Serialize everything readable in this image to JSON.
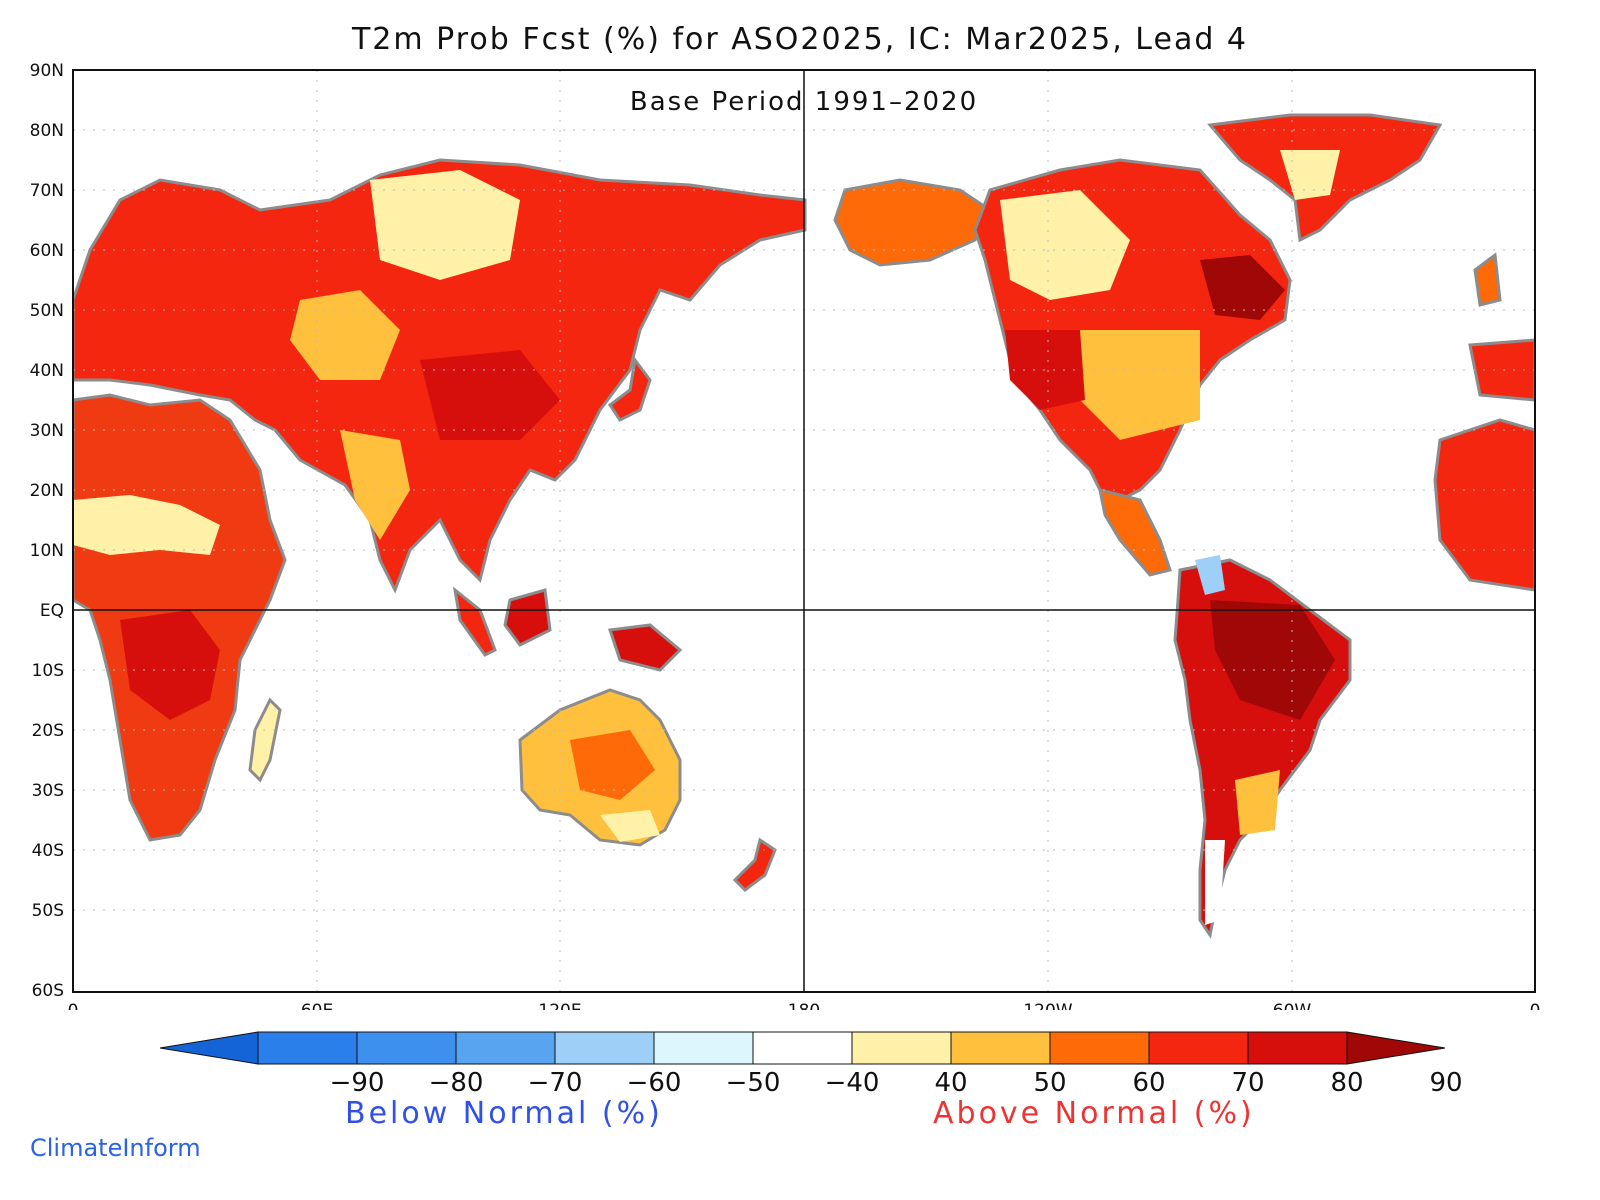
{
  "title": "T2m Prob Fcst (%) for ASO2025, IC: Mar2025, Lead 4",
  "subtitle": "Base Period 1991–2020",
  "lat_labels": [
    "90N",
    "80N",
    "70N",
    "60N",
    "50N",
    "40N",
    "30N",
    "20N",
    "10N",
    "EQ",
    "10S",
    "20S",
    "30S",
    "40S",
    "50S",
    "60S"
  ],
  "lon_labels": [
    "0",
    "60E",
    "120E",
    "180",
    "120W",
    "60W",
    "0"
  ],
  "legend": {
    "ticks": [
      "−90",
      "−80",
      "−70",
      "−60",
      "−50",
      "−40",
      "40",
      "50",
      "60",
      "70",
      "80",
      "90"
    ],
    "colors": [
      "#1464d8",
      "#2b7fea",
      "#3d90ee",
      "#58a4f0",
      "#9ecff6",
      "#dcf6fd",
      "#ffffff",
      "#fff2a8",
      "#fec03d",
      "#fd6a07",
      "#f4260f",
      "#d60f0d",
      "#a00707"
    ],
    "below_label": "Below Normal (%)",
    "above_label": "Above Normal (%)"
  },
  "credit": "ClimateInform"
}
